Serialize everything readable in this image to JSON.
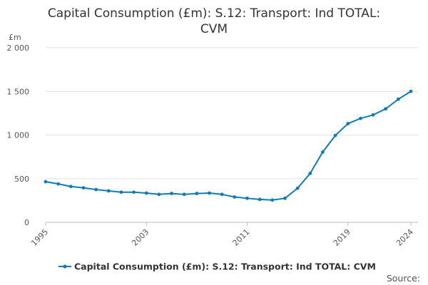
{
  "chart_data": {
    "type": "line",
    "title_lines": [
      "Capital Consumption (£m): S.12: Transport: Ind TOTAL:",
      "CVM"
    ],
    "ylabel": "£m",
    "xlabel": "",
    "ylim": [
      0,
      2000
    ],
    "yticks": [
      0,
      500,
      1000,
      1500,
      2000
    ],
    "ytick_labels": [
      "0",
      "500",
      "1 000",
      "1 500",
      "2 000"
    ],
    "xlim": [
      1995,
      2024
    ],
    "xticks": [
      1995,
      2003,
      2011,
      2019,
      2024
    ],
    "xtick_labels": [
      "1995",
      "2003",
      "2011",
      "2019",
      "2024"
    ],
    "grid": true,
    "legend_position": "bottom",
    "series": [
      {
        "name": "Capital Consumption (£m): S.12: Transport: Ind TOTAL: CVM",
        "color": "#0f7bb8",
        "x": [
          1995,
          1996,
          1997,
          1998,
          1999,
          2000,
          2001,
          2002,
          2003,
          2004,
          2005,
          2006,
          2007,
          2008,
          2009,
          2010,
          2011,
          2012,
          2013,
          2014,
          2015,
          2016,
          2017,
          2018,
          2019,
          2020,
          2021,
          2022,
          2023,
          2024
        ],
        "values": [
          465,
          440,
          410,
          395,
          375,
          360,
          345,
          345,
          335,
          320,
          330,
          320,
          330,
          335,
          320,
          290,
          275,
          262,
          255,
          275,
          390,
          560,
          805,
          995,
          1130,
          1190,
          1230,
          1300,
          1410,
          1500
        ]
      }
    ]
  },
  "footer": {
    "source_label": "Source:"
  }
}
